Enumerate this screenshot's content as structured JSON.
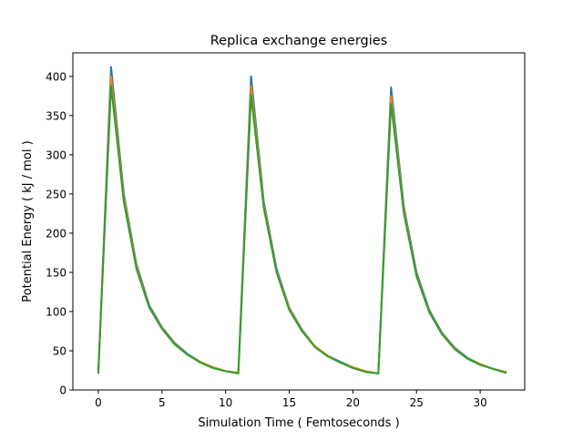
{
  "chart_data": {
    "type": "line",
    "title": "Replica exchange energies",
    "xlabel": "Simulation Time ( Femtoseconds )",
    "ylabel": "Potential Energy ( kJ / mol )",
    "xlim": [
      -2,
      33.5
    ],
    "ylim": [
      0,
      430
    ],
    "xticks": [
      0,
      5,
      10,
      15,
      20,
      25,
      30
    ],
    "yticks": [
      0,
      50,
      100,
      150,
      200,
      250,
      300,
      350,
      400
    ],
    "grid": false,
    "legend": "none",
    "x": [
      0,
      1,
      2,
      3,
      4,
      5,
      6,
      7,
      8,
      9,
      10,
      11,
      12,
      13,
      14,
      15,
      16,
      17,
      18,
      19,
      20,
      21,
      22,
      23,
      24,
      25,
      26,
      27,
      28,
      29,
      30,
      31,
      32
    ],
    "series": [
      {
        "color": "#1f77b4",
        "values": [
          22,
          412,
          250,
          160,
          108,
          80,
          60,
          46,
          36,
          29,
          24,
          22,
          400,
          240,
          155,
          105,
          77,
          56,
          44,
          36,
          29,
          24,
          21,
          386,
          234,
          150,
          102,
          73,
          54,
          41,
          33,
          27,
          23
        ]
      },
      {
        "color": "#ff7f0e",
        "values": [
          22,
          400,
          245,
          157,
          106,
          79,
          59,
          45,
          36,
          29,
          24,
          22,
          388,
          236,
          152,
          104,
          76,
          56,
          44,
          35,
          29,
          24,
          21,
          375,
          230,
          147,
          100,
          72,
          53,
          40,
          33,
          27,
          23
        ]
      },
      {
        "color": "#2ca02c",
        "values": [
          22,
          388,
          240,
          154,
          105,
          78,
          58,
          45,
          35,
          28,
          24,
          21,
          376,
          232,
          150,
          102,
          75,
          55,
          43,
          35,
          28,
          23,
          21,
          365,
          226,
          145,
          99,
          71,
          52,
          40,
          32,
          27,
          22
        ]
      }
    ]
  }
}
